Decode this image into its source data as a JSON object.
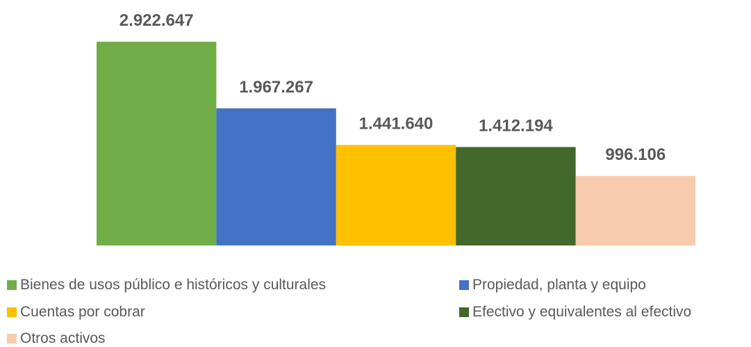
{
  "chart_data": {
    "type": "bar",
    "categories": [
      "Bienes de usos público e históricos y culturales",
      "Propiedad, planta y equipo",
      "Cuentas por cobrar",
      "Efectivo y equivalentes al efectivo",
      "Otros activos"
    ],
    "values": [
      2922647,
      1967267,
      1441640,
      1412194,
      996106
    ],
    "value_labels": [
      "2.922.647",
      "1.967.267",
      "1.441.640",
      "1.412.194",
      "996.106"
    ],
    "colors": [
      "#70AD47",
      "#4472C4",
      "#FFC000",
      "#43682B",
      "#F8CBAD"
    ],
    "title": "",
    "xlabel": "",
    "ylabel": "",
    "ylim": [
      0,
      3000000
    ],
    "grid": false,
    "legend_position": "bottom"
  },
  "legend": {
    "items": [
      {
        "label": "Bienes de usos público e históricos y culturales",
        "color": "#70AD47"
      },
      {
        "label": "Propiedad, planta y equipo",
        "color": "#4472C4"
      },
      {
        "label": "Cuentas por cobrar",
        "color": "#FFC000"
      },
      {
        "label": "Efectivo y equivalentes al efectivo",
        "color": "#43682B"
      },
      {
        "label": "Otros activos",
        "color": "#F8CBAD"
      }
    ]
  }
}
